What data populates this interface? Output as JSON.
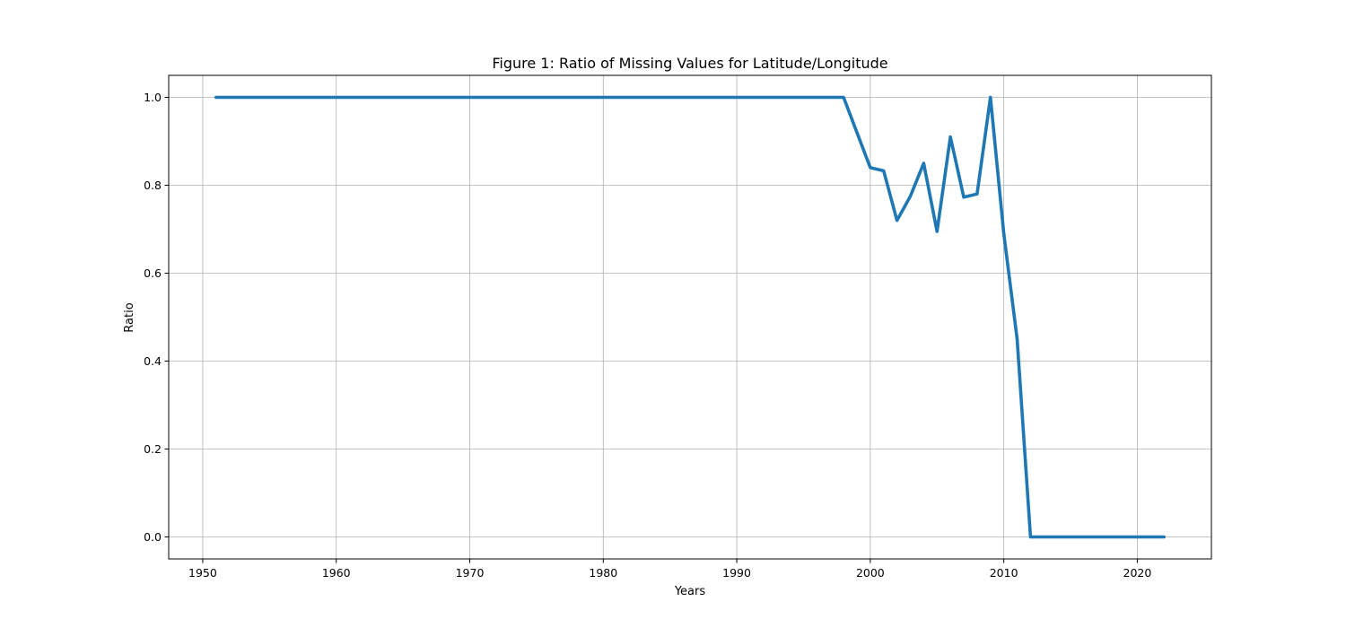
{
  "chart_data": {
    "type": "line",
    "title": "Figure 1: Ratio of Missing Values for Latitude/Longitude",
    "xlabel": "Years",
    "ylabel": "Ratio",
    "xlim": [
      1947.45,
      2025.55
    ],
    "ylim": [
      -0.05,
      1.05
    ],
    "xticks": [
      1950,
      1960,
      1970,
      1980,
      1990,
      2000,
      2010,
      2020
    ],
    "xtick_labels": [
      "1950",
      "1960",
      "1970",
      "1980",
      "1990",
      "2000",
      "2010",
      "2020"
    ],
    "yticks": [
      0.0,
      0.2,
      0.4,
      0.6,
      0.8,
      1.0
    ],
    "ytick_labels": [
      "0.0",
      "0.2",
      "0.4",
      "0.6",
      "0.8",
      "1.0"
    ],
    "grid": true,
    "series": [
      {
        "color": "#1f77b4",
        "x": [
          1951,
          1998,
          2000,
          2001,
          2002,
          2003,
          2004,
          2005,
          2006,
          2007,
          2008,
          2009,
          2010,
          2011,
          2012,
          2022
        ],
        "y": [
          1.0,
          1.0,
          0.84,
          0.833,
          0.72,
          0.775,
          0.85,
          0.695,
          0.91,
          0.773,
          0.78,
          1.0,
          0.69,
          0.45,
          0.0,
          0.0
        ]
      }
    ]
  }
}
